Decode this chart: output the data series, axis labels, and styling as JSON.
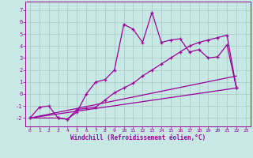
{
  "bg_color": "#c8e8e4",
  "line_color": "#990099",
  "grid_color": "#aacccc",
  "xlabel": "Windchill (Refroidissement éolien,°C)",
  "x_ticks": [
    0,
    1,
    2,
    3,
    4,
    5,
    6,
    7,
    8,
    9,
    10,
    11,
    12,
    13,
    14,
    15,
    16,
    17,
    18,
    19,
    20,
    21,
    22,
    23
  ],
  "y_ticks": [
    -2,
    -1,
    0,
    1,
    2,
    3,
    4,
    5,
    6,
    7
  ],
  "xlim": [
    -0.5,
    23.5
  ],
  "ylim": [
    -2.7,
    7.7
  ],
  "line1_x": [
    0,
    22
  ],
  "line1_y": [
    -2.0,
    0.5
  ],
  "line2_x": [
    0,
    22
  ],
  "line2_y": [
    -2.0,
    1.5
  ],
  "series1_x": [
    0,
    1,
    2,
    3,
    4,
    5,
    6,
    7,
    8,
    9,
    10,
    11,
    12,
    13,
    14,
    15,
    16,
    17,
    18,
    19,
    20,
    21,
    22
  ],
  "series1_y": [
    -2.0,
    -1.1,
    -1.0,
    -2.0,
    -2.1,
    -1.3,
    -1.2,
    -1.1,
    -0.5,
    0.1,
    0.5,
    0.9,
    1.5,
    2.0,
    2.5,
    3.0,
    3.5,
    4.0,
    4.3,
    4.5,
    4.7,
    4.9,
    0.5
  ],
  "series2_x": [
    0,
    3,
    4,
    5,
    6,
    7,
    8,
    9,
    10,
    11,
    12,
    13,
    14,
    15,
    16,
    17,
    18,
    19,
    20,
    21,
    22
  ],
  "series2_y": [
    -2.0,
    -2.0,
    -2.1,
    -1.5,
    0.0,
    1.0,
    1.2,
    2.0,
    5.8,
    5.4,
    4.3,
    6.8,
    4.3,
    4.5,
    4.6,
    3.5,
    3.7,
    3.0,
    3.1,
    4.1,
    0.5
  ]
}
